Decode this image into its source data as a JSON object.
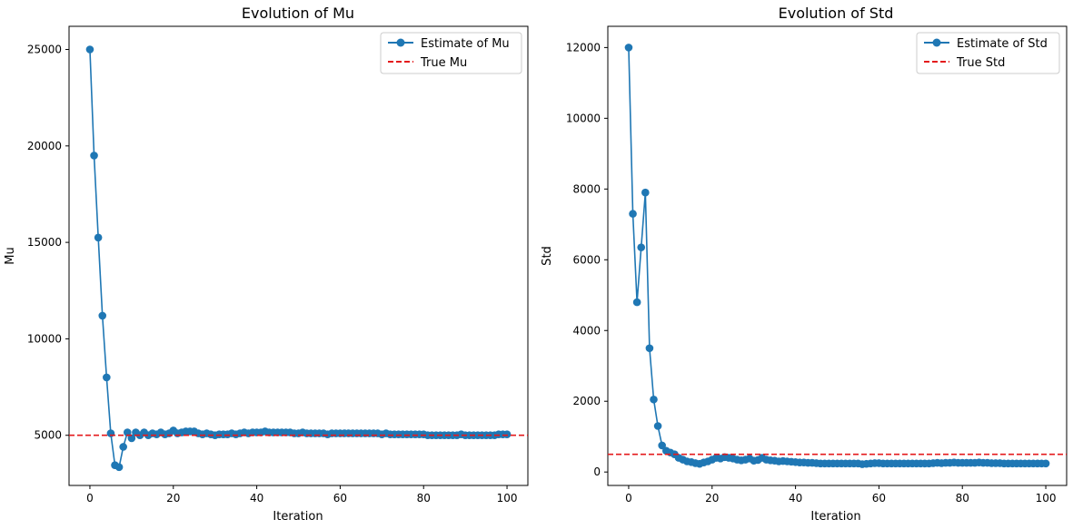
{
  "chart_data": [
    {
      "type": "line",
      "title": "Evolution of Mu",
      "xlabel": "Iteration",
      "ylabel": "Mu",
      "xlim": [
        -5,
        105
      ],
      "ylim": [
        2400,
        26200
      ],
      "xticks": [
        0,
        20,
        40,
        60,
        80,
        100
      ],
      "xtick_labels": [
        "0",
        "20",
        "40",
        "60",
        "80",
        "100"
      ],
      "yticks": [
        5000,
        10000,
        15000,
        20000,
        25000
      ],
      "ytick_labels": [
        "5000",
        "10000",
        "15000",
        "20000",
        "25000"
      ],
      "grid": false,
      "legend_position": "top-right",
      "series": [
        {
          "name": "Estimate of Mu",
          "color": "#1f77b4",
          "style": "line-marker",
          "x": [
            0,
            1,
            2,
            3,
            4,
            5,
            6,
            7,
            8,
            9,
            10,
            11,
            12,
            13,
            14,
            15,
            16,
            17,
            18,
            19,
            20,
            21,
            22,
            23,
            24,
            25,
            26,
            27,
            28,
            29,
            30,
            31,
            32,
            33,
            34,
            35,
            36,
            37,
            38,
            39,
            40,
            41,
            42,
            43,
            44,
            45,
            46,
            47,
            48,
            49,
            50,
            51,
            52,
            53,
            54,
            55,
            56,
            57,
            58,
            59,
            60,
            61,
            62,
            63,
            64,
            65,
            66,
            67,
            68,
            69,
            70,
            71,
            72,
            73,
            74,
            75,
            76,
            77,
            78,
            79,
            80,
            81,
            82,
            83,
            84,
            85,
            86,
            87,
            88,
            89,
            90,
            91,
            92,
            93,
            94,
            95,
            96,
            97,
            98,
            99,
            100
          ],
          "values": [
            25000,
            19500,
            15250,
            11200,
            8000,
            5100,
            3450,
            3350,
            4400,
            5150,
            4850,
            5150,
            5000,
            5150,
            5000,
            5100,
            5050,
            5150,
            5050,
            5100,
            5250,
            5100,
            5150,
            5200,
            5200,
            5200,
            5100,
            5050,
            5100,
            5050,
            5000,
            5050,
            5050,
            5050,
            5100,
            5050,
            5100,
            5150,
            5100,
            5150,
            5150,
            5150,
            5200,
            5150,
            5150,
            5150,
            5150,
            5150,
            5150,
            5100,
            5100,
            5150,
            5100,
            5100,
            5100,
            5100,
            5100,
            5050,
            5100,
            5100,
            5100,
            5100,
            5100,
            5100,
            5100,
            5100,
            5100,
            5100,
            5100,
            5100,
            5050,
            5100,
            5050,
            5050,
            5050,
            5050,
            5050,
            5050,
            5050,
            5050,
            5050,
            5000,
            5000,
            5000,
            5000,
            5000,
            5000,
            5000,
            5000,
            5050,
            5000,
            5000,
            5000,
            5000,
            5000,
            5000,
            5000,
            5000,
            5050,
            5050,
            5050
          ]
        },
        {
          "name": "True Mu",
          "color": "#e41a1c",
          "style": "dashed-hline",
          "value": 5000
        }
      ]
    },
    {
      "type": "line",
      "title": "Evolution of Std",
      "xlabel": "Iteration",
      "ylabel": "Std",
      "xlim": [
        -5,
        105
      ],
      "ylim": [
        -380,
        12600
      ],
      "xticks": [
        0,
        20,
        40,
        60,
        80,
        100
      ],
      "xtick_labels": [
        "0",
        "20",
        "40",
        "60",
        "80",
        "100"
      ],
      "yticks": [
        0,
        2000,
        4000,
        6000,
        8000,
        10000,
        12000
      ],
      "ytick_labels": [
        "0",
        "2000",
        "4000",
        "6000",
        "8000",
        "10000",
        "12000"
      ],
      "grid": false,
      "legend_position": "top-right",
      "series": [
        {
          "name": "Estimate of Std",
          "color": "#1f77b4",
          "style": "line-marker",
          "x": [
            0,
            1,
            2,
            3,
            4,
            5,
            6,
            7,
            8,
            9,
            10,
            11,
            12,
            13,
            14,
            15,
            16,
            17,
            18,
            19,
            20,
            21,
            22,
            23,
            24,
            25,
            26,
            27,
            28,
            29,
            30,
            31,
            32,
            33,
            34,
            35,
            36,
            37,
            38,
            39,
            40,
            41,
            42,
            43,
            44,
            45,
            46,
            47,
            48,
            49,
            50,
            51,
            52,
            53,
            54,
            55,
            56,
            57,
            58,
            59,
            60,
            61,
            62,
            63,
            64,
            65,
            66,
            67,
            68,
            69,
            70,
            71,
            72,
            73,
            74,
            75,
            76,
            77,
            78,
            79,
            80,
            81,
            82,
            83,
            84,
            85,
            86,
            87,
            88,
            89,
            90,
            91,
            92,
            93,
            94,
            95,
            96,
            97,
            98,
            99,
            100
          ],
          "values": [
            12000,
            7300,
            4800,
            6350,
            7900,
            3500,
            2050,
            1300,
            750,
            600,
            550,
            500,
            400,
            350,
            300,
            280,
            250,
            230,
            270,
            300,
            350,
            400,
            380,
            420,
            400,
            380,
            350,
            330,
            350,
            380,
            320,
            340,
            400,
            350,
            330,
            320,
            300,
            310,
            300,
            290,
            280,
            270,
            270,
            260,
            260,
            250,
            240,
            240,
            240,
            240,
            240,
            240,
            240,
            240,
            240,
            240,
            220,
            230,
            240,
            250,
            250,
            240,
            240,
            240,
            240,
            240,
            240,
            240,
            240,
            240,
            240,
            240,
            240,
            250,
            260,
            250,
            260,
            260,
            270,
            260,
            260,
            260,
            260,
            260,
            270,
            260,
            260,
            250,
            250,
            250,
            240,
            240,
            240,
            240,
            240,
            240,
            240,
            240,
            240,
            240,
            240
          ]
        },
        {
          "name": "True Std",
          "color": "#e41a1c",
          "style": "dashed-hline",
          "value": 500
        }
      ]
    }
  ]
}
